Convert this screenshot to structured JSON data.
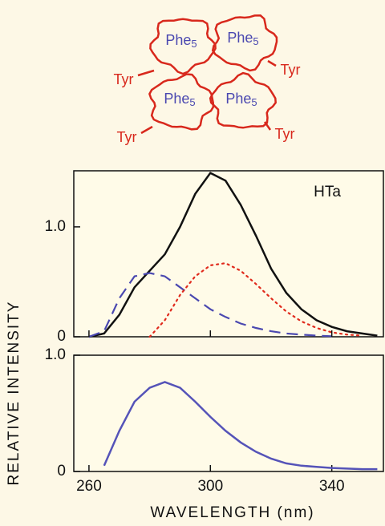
{
  "diagram": {
    "units": [
      {
        "label": "Phe",
        "subscript": "5"
      },
      {
        "label": "Phe",
        "subscript": "5"
      },
      {
        "label": "Phe",
        "subscript": "5"
      },
      {
        "label": "Phe",
        "subscript": "5"
      }
    ],
    "tyr_labels": [
      "Tyr",
      "Tyr",
      "Tyr",
      "Tyr"
    ]
  },
  "chart_data": [
    {
      "type": "line",
      "ylabel": "RELATIVE INTENSITY",
      "annotation": "HTa",
      "x": [
        260,
        265,
        270,
        275,
        280,
        285,
        290,
        295,
        300,
        305,
        310,
        315,
        320,
        325,
        330,
        335,
        340,
        345,
        350,
        355
      ],
      "xlim": [
        255,
        357
      ],
      "ylim": [
        0,
        1.51
      ],
      "yticks": [
        0,
        {
          "value": 1,
          "label": "1.0"
        }
      ],
      "series": [
        {
          "color": "#111111",
          "style": "solid",
          "values": [
            0,
            0.03,
            0.2,
            0.45,
            0.6,
            0.75,
            1.0,
            1.3,
            1.49,
            1.42,
            1.2,
            0.92,
            0.62,
            0.4,
            0.25,
            0.15,
            0.09,
            0.05,
            0.03,
            0.01
          ]
        },
        {
          "color": "#4a48b0",
          "style": "dashed",
          "values": [
            0,
            0.05,
            0.35,
            0.55,
            0.58,
            0.55,
            0.45,
            0.35,
            0.25,
            0.18,
            0.12,
            0.08,
            0.05,
            0.03,
            0.02,
            0.01,
            0.005,
            null,
            null,
            null
          ]
        },
        {
          "color": "#e02a1c",
          "style": "dotted",
          "values": [
            null,
            null,
            null,
            null,
            0,
            0.15,
            0.38,
            0.55,
            0.65,
            0.67,
            0.6,
            0.48,
            0.35,
            0.23,
            0.14,
            0.08,
            0.04,
            0.02,
            0.01,
            null
          ]
        }
      ]
    },
    {
      "type": "line",
      "xlabel": "WAVELENGTH (nm)",
      "x": [
        260,
        265,
        270,
        275,
        280,
        285,
        290,
        295,
        300,
        305,
        310,
        315,
        320,
        325,
        330,
        335,
        340,
        345,
        350,
        355
      ],
      "xlim": [
        255,
        357
      ],
      "ylim": [
        0,
        1.0
      ],
      "xticks": [
        260,
        300,
        340
      ],
      "yticks": [
        0,
        {
          "value": 1,
          "label": "1.0"
        }
      ],
      "series": [
        {
          "color": "#5553b8",
          "style": "solid",
          "values": [
            null,
            0.05,
            0.35,
            0.6,
            0.72,
            0.77,
            0.72,
            0.6,
            0.47,
            0.35,
            0.25,
            0.17,
            0.11,
            0.07,
            0.05,
            0.04,
            0.03,
            0.025,
            0.02,
            0.02
          ]
        }
      ]
    }
  ]
}
